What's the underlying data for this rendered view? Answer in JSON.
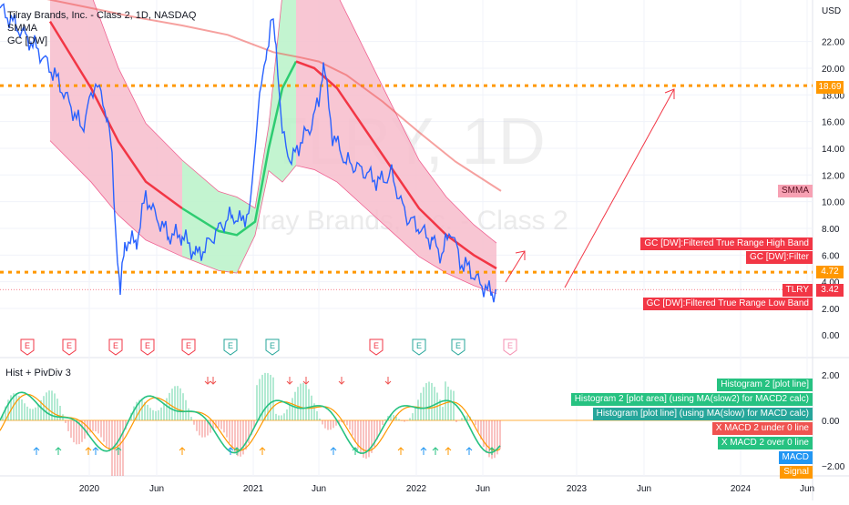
{
  "header": {
    "title": "Tilray Brands, Inc. - Class 2, 1D, NASDAQ",
    "indicators": [
      "SMMA",
      "GC [DW]"
    ]
  },
  "watermark": {
    "big": "TLRY, 1D",
    "sub": "Tilray Brands, Inc. - Class 2"
  },
  "osc_label": "Hist + PivDiv 3",
  "currency": "USD",
  "price_tags": {
    "resistance": "18.69",
    "support": "4.72",
    "last": "3.42",
    "symbol": "TLRY",
    "smma": "SMMA",
    "high_band": "GC [DW]:Filtered True Range High Band",
    "filter": "GC [DW]:Filter",
    "low_band": "GC [DW]:Filtered True Range Low Band"
  },
  "osc_tags": {
    "hist2_line": "Histogram 2 [plot line]",
    "hist2_area": "Histogram 2 [plot area] (using MA(slow2) for MACD2 calc)",
    "hist_line": "Histogram [plot line] (using MA(slow) for MACD calc)",
    "xmacd2_under": "X MACD 2 under 0 line",
    "xmacd2_over": "X MACD 2 over 0 line",
    "macd": "MACD",
    "signal": "Signal"
  },
  "earnings_marker": "E",
  "colors": {
    "price_line": "#2962ff",
    "smma": "#ef5350",
    "filter": "#f23645",
    "band_up": "#b8f2c8",
    "band_down": "#f7bccb",
    "levels": "#ff9800",
    "macd": "#2196f3",
    "signal": "#ff9800",
    "hist_green": "#26c281",
    "hist_red": "#ef5350"
  },
  "chart_data": {
    "type": "line",
    "symbol": "TLRY",
    "interval": "1D",
    "x_labels": [
      "2020",
      "Jun",
      "2021",
      "Jun",
      "2022",
      "Jun",
      "2023",
      "Jun",
      "2024",
      "Jun"
    ],
    "y_axis_price": {
      "unit": "USD",
      "ticks": [
        2.0,
        4.0,
        6.0,
        8.0,
        10.0,
        12.0,
        14.0,
        16.0,
        18.0,
        20.0,
        22.0
      ],
      "tick_labels": [
        "2.00",
        "4.00",
        "6.00",
        "8.00",
        "10.00",
        "12.00",
        "14.00",
        "16.00",
        "18.00",
        "20.00",
        "22.00"
      ],
      "ylim": [
        1.0,
        23.5
      ]
    },
    "y_axis_osc": {
      "ticks": [
        2.0,
        0.0,
        -2.0
      ],
      "tick_labels": [
        "2.00",
        "0.00",
        "−2.00"
      ],
      "ylim": [
        -2.6,
        2.6
      ]
    },
    "levels": [
      18.69,
      4.72
    ],
    "last_price": 3.42,
    "series": [
      {
        "name": "TLRY",
        "x": [
          0,
          40,
          60,
          90,
          105,
          118,
          123,
          127,
          132,
          137,
          150,
          160,
          170,
          185,
          200,
          215,
          225,
          240,
          255,
          265,
          275,
          283,
          288,
          293,
          298,
          303,
          310,
          320,
          330,
          340,
          350,
          355,
          365,
          380,
          395,
          415,
          430,
          445,
          460,
          475,
          485,
          495,
          505,
          515,
          525,
          540,
          545
        ],
        "values": [
          24.5,
          21.5,
          19.5,
          15.5,
          19.0,
          16.5,
          13.0,
          8.0,
          3.0,
          7.0,
          7.0,
          10.5,
          9.0,
          7.5,
          7.5,
          6.0,
          6.5,
          8.0,
          9.0,
          8.5,
          9.5,
          17.0,
          19.0,
          21.5,
          23.5,
          22.0,
          15.0,
          13.0,
          14.5,
          15.5,
          17.5,
          20.5,
          15.0,
          13.0,
          12.5,
          11.5,
          12.0,
          9.0,
          8.0,
          7.0,
          6.0,
          8.0,
          5.5,
          5.0,
          4.0,
          3.1,
          3.42
        ]
      },
      {
        "name": "SMMA",
        "x": [
          0,
          50,
          100,
          150,
          200,
          250,
          300,
          330,
          350,
          380,
          420,
          460,
          500,
          550
        ],
        "values": [
          25.5,
          25.2,
          24.5,
          23.8,
          23.2,
          22.5,
          21.2,
          20.8,
          20.5,
          19.5,
          17.5,
          15.2,
          13.0,
          10.8
        ]
      },
      {
        "name": "GC [DW]:Filter",
        "x": [
          55,
          100,
          130,
          160,
          200,
          240,
          260,
          280,
          295,
          310,
          325,
          345,
          370,
          400,
          430,
          460,
          490,
          520,
          545
        ],
        "values": [
          23.5,
          18.5,
          14.5,
          11.5,
          9.5,
          7.8,
          7.5,
          8.5,
          14.0,
          18.5,
          20.5,
          20.0,
          18.5,
          15.5,
          12.5,
          9.5,
          7.5,
          6.0,
          5.0
        ]
      }
    ]
  }
}
